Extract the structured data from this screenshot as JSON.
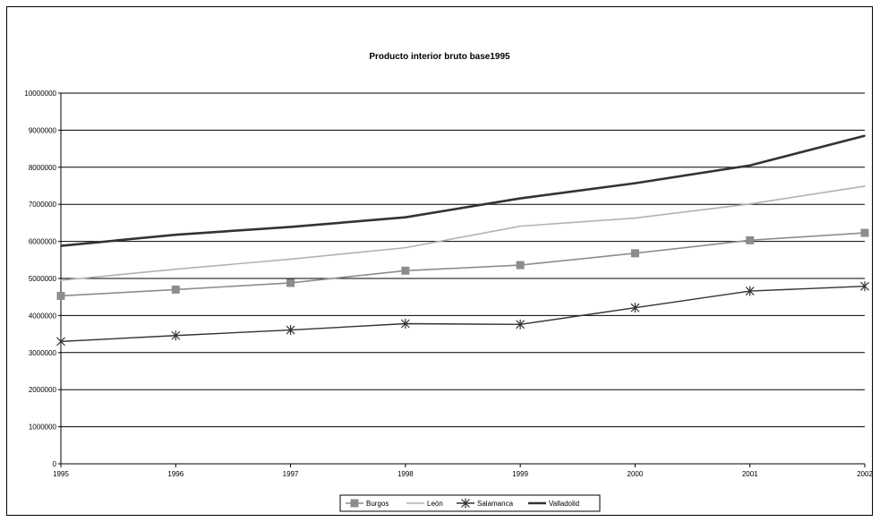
{
  "chart_data": {
    "type": "line",
    "title": "Producto interior bruto base1995",
    "categories": [
      "1995",
      "1996",
      "1997",
      "1998",
      "1999",
      "2000",
      "2001",
      "2002"
    ],
    "ylim": [
      0,
      10000000
    ],
    "yticks": [
      "0",
      "1000000",
      "2000000",
      "3000000",
      "4000000",
      "5000000",
      "6000000",
      "7000000",
      "8000000",
      "9000000",
      "10000000"
    ],
    "grid": true,
    "legend_position": "bottom",
    "series": [
      {
        "name": "Burgos",
        "color": "#8c8c8c",
        "marker": "square",
        "values": [
          4530000,
          4700000,
          4880000,
          5210000,
          5360000,
          5680000,
          6030000,
          6230000
        ]
      },
      {
        "name": "León",
        "color": "#b2b2b2",
        "marker": "none",
        "values": [
          4950000,
          5250000,
          5520000,
          5830000,
          6410000,
          6630000,
          7010000,
          7490000
        ]
      },
      {
        "name": "Salamanca",
        "color": "#333333",
        "marker": "star",
        "values": [
          3300000,
          3460000,
          3610000,
          3780000,
          3760000,
          4210000,
          4660000,
          4790000
        ]
      },
      {
        "name": "Valladolid",
        "color": "#333333",
        "marker": "none",
        "values": [
          5880000,
          6180000,
          6390000,
          6650000,
          7160000,
          7570000,
          8050000,
          8850000
        ]
      }
    ]
  }
}
